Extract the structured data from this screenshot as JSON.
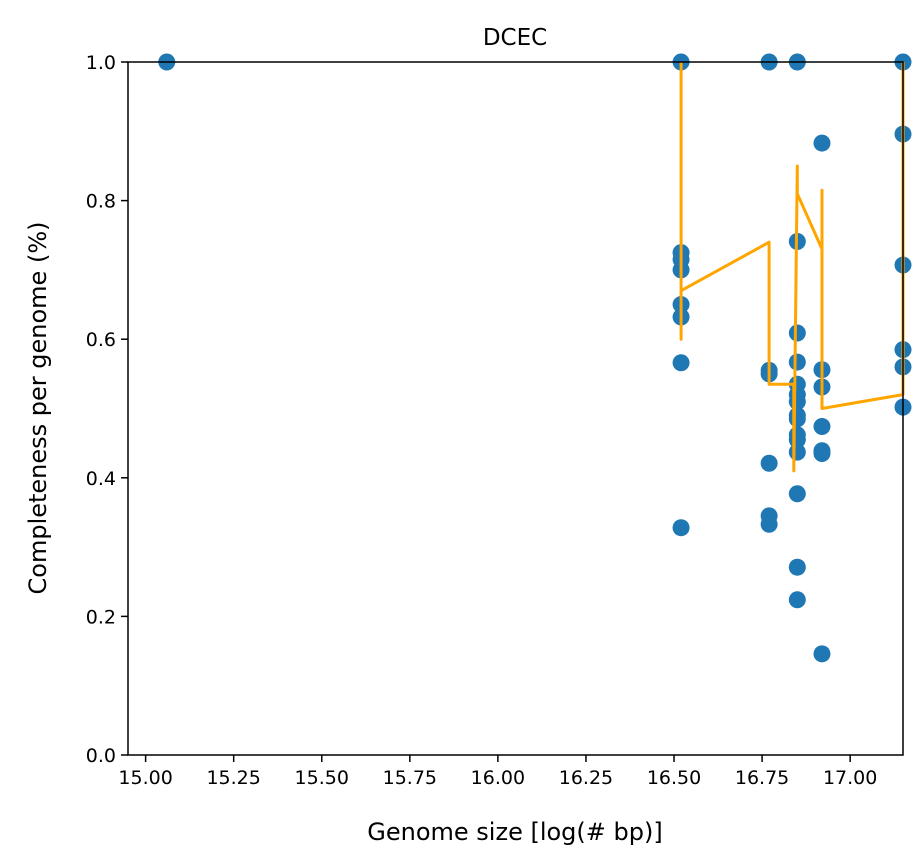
{
  "chart_data": {
    "type": "scatter",
    "title": "DCEC",
    "xlabel": "Genome size [log(# bp)]",
    "ylabel": "Completeness per genome (%)",
    "xlim": [
      14.95,
      17.15
    ],
    "ylim": [
      0.0,
      1.0
    ],
    "xticks": [
      "15.00",
      "15.25",
      "15.50",
      "15.75",
      "16.00",
      "16.25",
      "16.50",
      "16.75",
      "17.00"
    ],
    "yticks": [
      "0.0",
      "0.2",
      "0.4",
      "0.6",
      "0.8",
      "1.0"
    ],
    "grid": false,
    "legend": "none",
    "colors": {
      "points": "#1f77b4",
      "line": "#ffa500"
    },
    "series": [
      {
        "type": "scatter",
        "points": [
          [
            15.06,
            1.0
          ],
          [
            16.52,
            1.0
          ],
          [
            16.52,
            0.725
          ],
          [
            16.52,
            0.715
          ],
          [
            16.52,
            0.7
          ],
          [
            16.52,
            0.65
          ],
          [
            16.52,
            0.632
          ],
          [
            16.52,
            0.566
          ],
          [
            16.52,
            0.328
          ],
          [
            16.77,
            1.0
          ],
          [
            16.77,
            0.555
          ],
          [
            16.77,
            0.55
          ],
          [
            16.77,
            0.421
          ],
          [
            16.77,
            0.345
          ],
          [
            16.77,
            0.333
          ],
          [
            16.85,
            1.0
          ],
          [
            16.85,
            0.741
          ],
          [
            16.85,
            0.609
          ],
          [
            16.85,
            0.567
          ],
          [
            16.85,
            0.535
          ],
          [
            16.85,
            0.52
          ],
          [
            16.85,
            0.51
          ],
          [
            16.85,
            0.49
          ],
          [
            16.85,
            0.485
          ],
          [
            16.85,
            0.462
          ],
          [
            16.85,
            0.455
          ],
          [
            16.85,
            0.437
          ],
          [
            16.85,
            0.377
          ],
          [
            16.85,
            0.271
          ],
          [
            16.85,
            0.224
          ],
          [
            16.92,
            0.883
          ],
          [
            16.92,
            0.556
          ],
          [
            16.92,
            0.531
          ],
          [
            16.92,
            0.474
          ],
          [
            16.92,
            0.439
          ],
          [
            16.92,
            0.435
          ],
          [
            16.92,
            0.146
          ],
          [
            17.15,
            1.0
          ],
          [
            17.15,
            0.896
          ],
          [
            17.15,
            0.707
          ],
          [
            17.15,
            0.585
          ],
          [
            17.15,
            0.56
          ],
          [
            17.15,
            0.502
          ]
        ]
      },
      {
        "type": "line",
        "points": [
          [
            16.52,
            1.0
          ],
          [
            16.52,
            0.6
          ],
          [
            16.52,
            0.67
          ],
          [
            16.77,
            0.74
          ],
          [
            16.77,
            0.535
          ],
          [
            16.84,
            0.535
          ],
          [
            16.84,
            0.41
          ],
          [
            16.85,
            0.85
          ],
          [
            16.85,
            0.81
          ],
          [
            16.92,
            0.73
          ],
          [
            16.92,
            0.815
          ],
          [
            16.92,
            0.5
          ],
          [
            17.15,
            0.52
          ],
          [
            17.15,
            1.0
          ]
        ]
      }
    ]
  }
}
